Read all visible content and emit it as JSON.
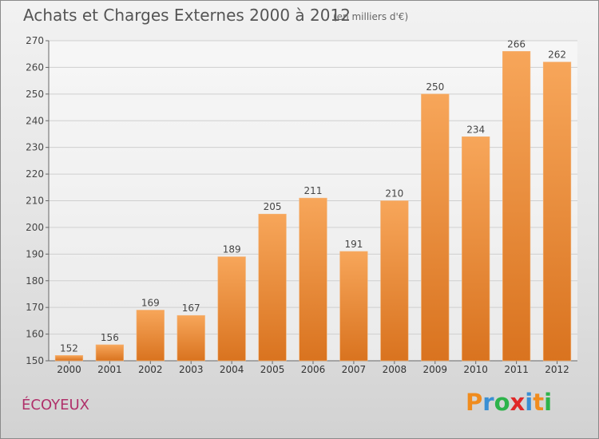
{
  "header": {
    "title": "Achats et Charges Externes 2000 à 2012",
    "subtitle": "(en milliers d'€)"
  },
  "footer": {
    "commune": "ÉCOYEUX",
    "brand": "Proxiti"
  },
  "colors": {
    "bar_light": "#f7a65a",
    "bar_dark": "#d9731f",
    "commune_text": "#b0306a",
    "brand_letters": [
      "#f08c1e",
      "#3a8fd4",
      "#2db34a",
      "#e02828",
      "#3a8fd4",
      "#f08c1e",
      "#2db34a"
    ]
  },
  "chart_data": {
    "type": "bar",
    "categories": [
      "2000",
      "2001",
      "2002",
      "2003",
      "2004",
      "2005",
      "2006",
      "2007",
      "2008",
      "2009",
      "2010",
      "2011",
      "2012"
    ],
    "values": [
      152,
      156,
      169,
      167,
      189,
      205,
      211,
      191,
      210,
      250,
      234,
      266,
      262
    ],
    "title": "Achats et Charges Externes 2000 à 2012",
    "subtitle": "(en milliers d'€)",
    "xlabel": "",
    "ylabel": "",
    "ylim": [
      150,
      270
    ],
    "yticks": [
      150,
      160,
      170,
      180,
      190,
      200,
      210,
      220,
      230,
      240,
      250,
      260,
      270
    ],
    "grid": true,
    "data_labels": true
  }
}
